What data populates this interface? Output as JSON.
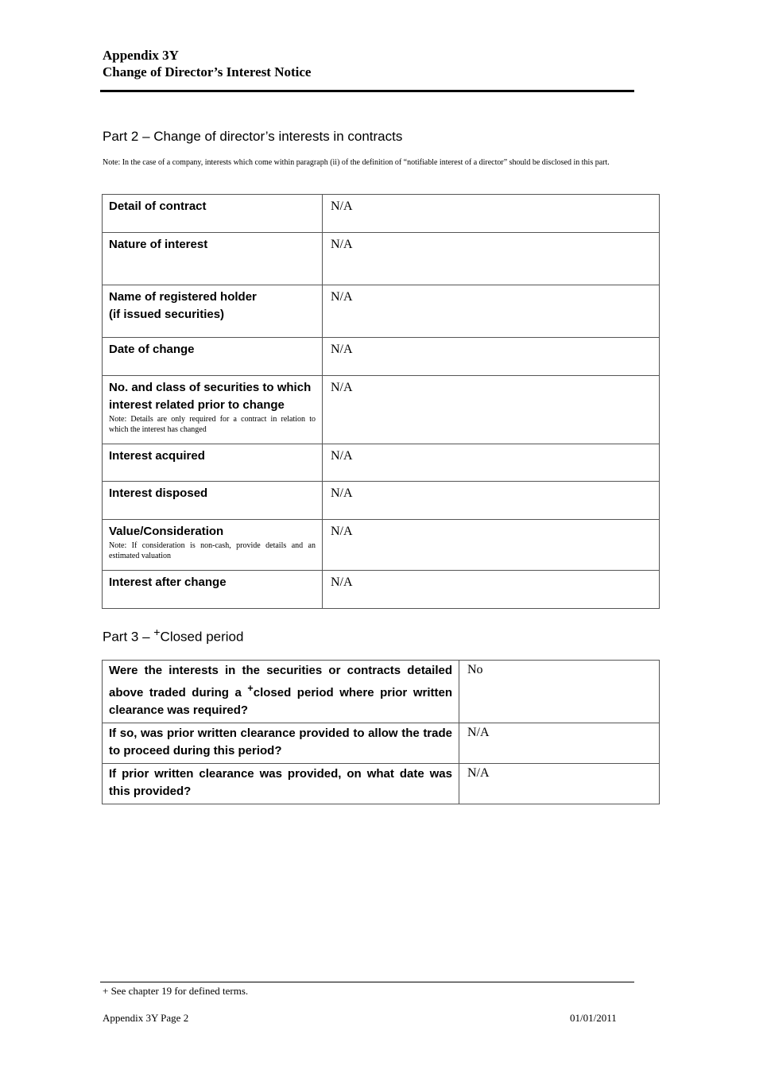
{
  "header": {
    "line1": "Appendix 3Y",
    "line2": "Change of Director’s Interest Notice"
  },
  "part2": {
    "title": "Part 2 – Change of director’s interests in contracts",
    "note": "Note: In the case of a company, interests which come within paragraph (ii) of the definition of “notifiable interest of a director” should be disclosed in this part.",
    "rows": [
      {
        "label": "Detail of contract",
        "label2": "",
        "note": "",
        "value": "N/A"
      },
      {
        "label": "Nature of interest",
        "label2": "",
        "note": "",
        "value": "N/A"
      },
      {
        "label": "Name of registered holder",
        "label2": "(if issued securities)",
        "note": "",
        "value": "N/A"
      },
      {
        "label": "Date of change",
        "label2": "",
        "note": "",
        "value": "N/A"
      },
      {
        "label": "No. and class of securities to which interest related prior to change",
        "label2": "",
        "note": "Note: Details are only required for a contract in relation to which the interest has changed",
        "value": "N/A"
      },
      {
        "label": "Interest acquired",
        "label2": "",
        "note": "",
        "value": "N/A"
      },
      {
        "label": "Interest disposed",
        "label2": "",
        "note": "",
        "value": "N/A"
      },
      {
        "label": "Value/Consideration",
        "label2": "",
        "note": "Note: If consideration is non-cash, provide details and an estimated valuation",
        "value": "N/A"
      },
      {
        "label": "Interest after change",
        "label2": "",
        "note": "",
        "value": "N/A"
      }
    ]
  },
  "part3": {
    "title_prefix": "Part 3 – ",
    "title_sup": "+",
    "title_rest": "Closed period",
    "rows": [
      {
        "q_before": "Were the interests in the securities or contracts detailed above traded during a ",
        "q_sup": "+",
        "q_after": "closed period where prior written clearance was required?",
        "value": "No"
      },
      {
        "q_before": "If so, was prior written clearance provided to allow the trade to proceed during this period?",
        "q_sup": "",
        "q_after": "",
        "value": "N/A"
      },
      {
        "q_before": "If prior written clearance was provided, on what date was this provided?",
        "q_sup": "",
        "q_after": "",
        "value": "N/A"
      }
    ]
  },
  "footer": {
    "footnote": "+ See chapter 19 for defined terms.",
    "page_label": "Appendix 3Y Page 2",
    "date": "01/01/2011"
  }
}
